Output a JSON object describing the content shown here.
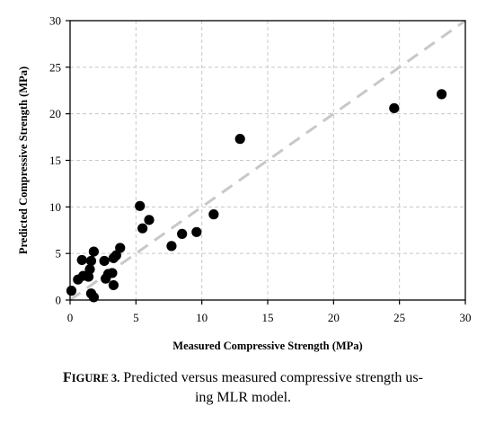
{
  "chart_data": {
    "type": "scatter",
    "xlabel": "Measured Compressive Strength (MPa)",
    "ylabel": "Predicted Compressive Strength (MPa)",
    "xlim": [
      0,
      30
    ],
    "ylim": [
      0,
      30
    ],
    "x_ticks": [
      0,
      5,
      10,
      15,
      20,
      25,
      30
    ],
    "y_ticks": [
      0,
      5,
      10,
      15,
      20,
      25,
      30
    ],
    "grid": true,
    "reference_line": {
      "style": "dashed",
      "color": "#c8c8c8",
      "from": [
        0,
        0
      ],
      "to": [
        30,
        30
      ]
    },
    "marker_color": "#000000",
    "points": [
      {
        "x": 0.1,
        "y": 1.0
      },
      {
        "x": 0.6,
        "y": 2.2
      },
      {
        "x": 0.9,
        "y": 4.3
      },
      {
        "x": 1.0,
        "y": 2.6
      },
      {
        "x": 1.4,
        "y": 2.5
      },
      {
        "x": 1.5,
        "y": 3.3
      },
      {
        "x": 1.6,
        "y": 4.2
      },
      {
        "x": 1.8,
        "y": 5.2
      },
      {
        "x": 1.6,
        "y": 0.7
      },
      {
        "x": 1.8,
        "y": 0.3
      },
      {
        "x": 2.6,
        "y": 4.2
      },
      {
        "x": 2.7,
        "y": 2.3
      },
      {
        "x": 2.9,
        "y": 2.8
      },
      {
        "x": 3.2,
        "y": 2.9
      },
      {
        "x": 3.3,
        "y": 1.6
      },
      {
        "x": 3.3,
        "y": 4.5
      },
      {
        "x": 3.5,
        "y": 4.8
      },
      {
        "x": 3.8,
        "y": 5.6
      },
      {
        "x": 5.3,
        "y": 10.1
      },
      {
        "x": 5.5,
        "y": 7.7
      },
      {
        "x": 6.0,
        "y": 8.6
      },
      {
        "x": 7.7,
        "y": 5.8
      },
      {
        "x": 8.5,
        "y": 7.1
      },
      {
        "x": 9.6,
        "y": 7.3
      },
      {
        "x": 10.9,
        "y": 9.2
      },
      {
        "x": 12.9,
        "y": 17.3
      },
      {
        "x": 24.6,
        "y": 20.6
      },
      {
        "x": 28.2,
        "y": 22.1
      }
    ]
  },
  "caption": {
    "label_first": "F",
    "label_rest": "IGURE 3.",
    "line1": " Predicted versus measured compressive strength us-",
    "line2": "ing MLR model."
  }
}
